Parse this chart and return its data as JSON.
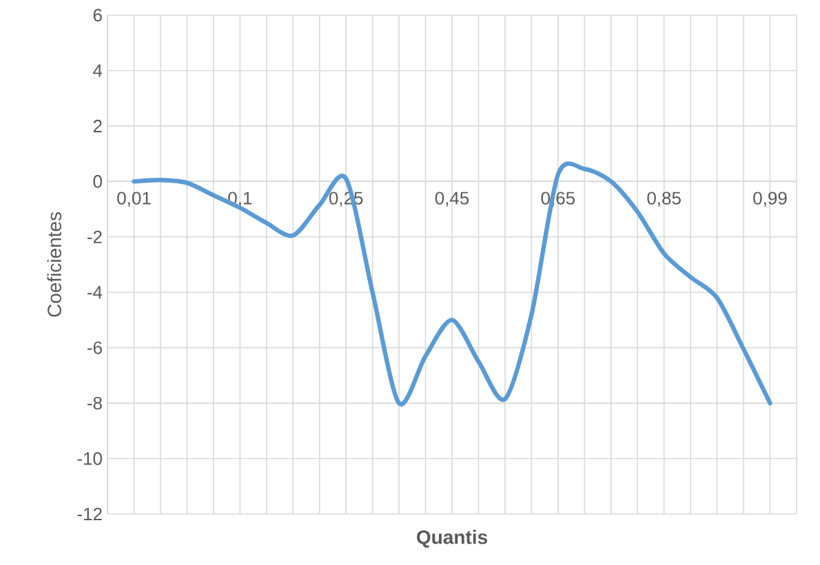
{
  "chart_data": {
    "type": "line",
    "xlabel": "Quantis",
    "ylabel": "Coeficientes",
    "categories": [
      "0,01",
      null,
      null,
      null,
      "0,1",
      null,
      null,
      null,
      "0,25",
      null,
      null,
      null,
      "0,45",
      null,
      null,
      null,
      "0,65",
      null,
      null,
      null,
      "0,85",
      null,
      null,
      null,
      "0,99"
    ],
    "series": [
      {
        "color": "#5b9bd5",
        "values": [
          0,
          0.05,
          -0.05,
          -0.5,
          -0.95,
          -1.5,
          -1.95,
          -0.85,
          0.1,
          -4,
          -8,
          -6.3,
          -5,
          -6.5,
          -7.85,
          -4.8,
          0.25,
          0.45,
          0,
          -1.1,
          -2.6,
          -3.45,
          -4.2,
          -6.05,
          -8
        ]
      }
    ],
    "ylim": [
      -12,
      6
    ],
    "yticks": [
      -12,
      -10,
      -8,
      -6,
      -4,
      -2,
      0,
      2,
      4,
      6
    ],
    "grid": true,
    "marker": "none",
    "line_style": "solid"
  }
}
